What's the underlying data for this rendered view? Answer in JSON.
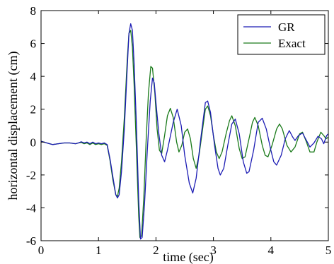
{
  "chart_data": {
    "type": "line",
    "xlabel": "time (sec)",
    "ylabel": "horizontal displacement (cm)",
    "xlim": [
      0,
      5
    ],
    "ylim": [
      -6,
      8
    ],
    "xticks": [
      "0",
      "1",
      "2",
      "3",
      "4",
      "5"
    ],
    "yticks": [
      "-6",
      "-4",
      "-2",
      "0",
      "2",
      "4",
      "6",
      "8"
    ],
    "grid": false,
    "legend_position": "top-right",
    "series": [
      {
        "name": "GR",
        "color": "#1c1cb4",
        "points": [
          [
            0,
            0.05
          ],
          [
            0.1,
            -0.05
          ],
          [
            0.2,
            -0.15
          ],
          [
            0.3,
            -0.1
          ],
          [
            0.4,
            -0.05
          ],
          [
            0.5,
            -0.05
          ],
          [
            0.6,
            -0.1
          ],
          [
            0.65,
            -0.05
          ],
          [
            0.7,
            0.02
          ],
          [
            0.75,
            -0.05
          ],
          [
            0.8,
            0.0
          ],
          [
            0.85,
            -0.1
          ],
          [
            0.9,
            0.0
          ],
          [
            0.95,
            -0.1
          ],
          [
            1.0,
            -0.05
          ],
          [
            1.05,
            -0.1
          ],
          [
            1.1,
            -0.05
          ],
          [
            1.15,
            -0.15
          ],
          [
            1.2,
            -1.0
          ],
          [
            1.25,
            -2.1
          ],
          [
            1.3,
            -3.2
          ],
          [
            1.33,
            -3.4
          ],
          [
            1.36,
            -3.2
          ],
          [
            1.4,
            -1.8
          ],
          [
            1.45,
            0.8
          ],
          [
            1.5,
            4.5
          ],
          [
            1.53,
            6.6
          ],
          [
            1.56,
            7.2
          ],
          [
            1.59,
            6.8
          ],
          [
            1.62,
            4.8
          ],
          [
            1.66,
            1.0
          ],
          [
            1.7,
            -3.5
          ],
          [
            1.73,
            -5.9
          ],
          [
            1.76,
            -5.8
          ],
          [
            1.8,
            -3.8
          ],
          [
            1.85,
            -0.5
          ],
          [
            1.9,
            2.5
          ],
          [
            1.94,
            3.9
          ],
          [
            1.97,
            3.6
          ],
          [
            2.0,
            2.4
          ],
          [
            2.05,
            0.5
          ],
          [
            2.1,
            -0.8
          ],
          [
            2.15,
            -1.2
          ],
          [
            2.2,
            -0.5
          ],
          [
            2.3,
            1.2
          ],
          [
            2.37,
            2.0
          ],
          [
            2.44,
            1.0
          ],
          [
            2.5,
            -0.8
          ],
          [
            2.58,
            -2.5
          ],
          [
            2.64,
            -3.1
          ],
          [
            2.7,
            -2.2
          ],
          [
            2.78,
            0.2
          ],
          [
            2.86,
            2.4
          ],
          [
            2.9,
            2.5
          ],
          [
            2.95,
            1.8
          ],
          [
            3.02,
            -0.2
          ],
          [
            3.08,
            -1.6
          ],
          [
            3.12,
            -2.0
          ],
          [
            3.18,
            -1.6
          ],
          [
            3.25,
            -0.2
          ],
          [
            3.32,
            1.1
          ],
          [
            3.38,
            1.4
          ],
          [
            3.45,
            0.5
          ],
          [
            3.52,
            -1.2
          ],
          [
            3.58,
            -1.9
          ],
          [
            3.62,
            -1.8
          ],
          [
            3.7,
            -0.5
          ],
          [
            3.78,
            1.2
          ],
          [
            3.85,
            1.45
          ],
          [
            3.92,
            0.8
          ],
          [
            4.0,
            -0.5
          ],
          [
            4.05,
            -1.2
          ],
          [
            4.1,
            -1.4
          ],
          [
            4.18,
            -0.8
          ],
          [
            4.25,
            0.2
          ],
          [
            4.32,
            0.7
          ],
          [
            4.38,
            0.3
          ],
          [
            4.42,
            0.1
          ],
          [
            4.48,
            0.4
          ],
          [
            4.55,
            0.55
          ],
          [
            4.62,
            0.1
          ],
          [
            4.68,
            -0.3
          ],
          [
            4.75,
            -0.05
          ],
          [
            4.82,
            0.35
          ],
          [
            4.88,
            0.2
          ],
          [
            4.92,
            -0.1
          ],
          [
            4.97,
            0.4
          ],
          [
            5.0,
            0.5
          ]
        ]
      },
      {
        "name": "Exact",
        "color": "#1a7a1a",
        "points": [
          [
            0,
            0.05
          ],
          [
            0.1,
            -0.05
          ],
          [
            0.2,
            -0.15
          ],
          [
            0.3,
            -0.1
          ],
          [
            0.4,
            -0.05
          ],
          [
            0.5,
            -0.05
          ],
          [
            0.6,
            -0.1
          ],
          [
            0.65,
            -0.05
          ],
          [
            0.7,
            -0.02
          ],
          [
            0.75,
            -0.1
          ],
          [
            0.8,
            -0.05
          ],
          [
            0.85,
            -0.15
          ],
          [
            0.9,
            -0.05
          ],
          [
            0.95,
            -0.15
          ],
          [
            1.0,
            -0.1
          ],
          [
            1.05,
            -0.15
          ],
          [
            1.1,
            -0.1
          ],
          [
            1.15,
            -0.2
          ],
          [
            1.2,
            -1.1
          ],
          [
            1.25,
            -2.3
          ],
          [
            1.3,
            -3.2
          ],
          [
            1.33,
            -3.3
          ],
          [
            1.36,
            -2.8
          ],
          [
            1.4,
            -1.2
          ],
          [
            1.45,
            1.5
          ],
          [
            1.5,
            5.0
          ],
          [
            1.53,
            6.6
          ],
          [
            1.56,
            6.8
          ],
          [
            1.59,
            5.8
          ],
          [
            1.62,
            3.5
          ],
          [
            1.66,
            -0.5
          ],
          [
            1.7,
            -4.5
          ],
          [
            1.72,
            -5.8
          ],
          [
            1.75,
            -5.7
          ],
          [
            1.79,
            -3.3
          ],
          [
            1.83,
            0.2
          ],
          [
            1.87,
            3.0
          ],
          [
            1.91,
            4.6
          ],
          [
            1.94,
            4.5
          ],
          [
            1.98,
            3.0
          ],
          [
            2.02,
            0.8
          ],
          [
            2.06,
            -0.5
          ],
          [
            2.1,
            -0.7
          ],
          [
            2.15,
            0.4
          ],
          [
            2.2,
            1.6
          ],
          [
            2.25,
            2.05
          ],
          [
            2.3,
            1.5
          ],
          [
            2.36,
            0.0
          ],
          [
            2.4,
            -0.6
          ],
          [
            2.45,
            -0.2
          ],
          [
            2.5,
            0.6
          ],
          [
            2.55,
            0.8
          ],
          [
            2.6,
            0.2
          ],
          [
            2.65,
            -1.0
          ],
          [
            2.7,
            -1.6
          ],
          [
            2.75,
            -0.8
          ],
          [
            2.82,
            1.0
          ],
          [
            2.86,
            2.0
          ],
          [
            2.9,
            2.2
          ],
          [
            2.95,
            1.6
          ],
          [
            3.0,
            0.4
          ],
          [
            3.05,
            -0.6
          ],
          [
            3.1,
            -1.0
          ],
          [
            3.15,
            -0.6
          ],
          [
            3.22,
            0.5
          ],
          [
            3.28,
            1.3
          ],
          [
            3.32,
            1.6
          ],
          [
            3.38,
            1.0
          ],
          [
            3.45,
            -0.4
          ],
          [
            3.5,
            -1.0
          ],
          [
            3.55,
            -0.9
          ],
          [
            3.62,
            0.2
          ],
          [
            3.68,
            1.2
          ],
          [
            3.72,
            1.5
          ],
          [
            3.78,
            1.0
          ],
          [
            3.85,
            -0.2
          ],
          [
            3.9,
            -0.8
          ],
          [
            3.95,
            -0.9
          ],
          [
            4.02,
            -0.2
          ],
          [
            4.1,
            0.8
          ],
          [
            4.15,
            1.1
          ],
          [
            4.2,
            0.8
          ],
          [
            4.28,
            -0.2
          ],
          [
            4.35,
            -0.6
          ],
          [
            4.42,
            -0.3
          ],
          [
            4.5,
            0.5
          ],
          [
            4.55,
            0.6
          ],
          [
            4.62,
            0.0
          ],
          [
            4.68,
            -0.6
          ],
          [
            4.75,
            -0.6
          ],
          [
            4.8,
            0.0
          ],
          [
            4.87,
            0.6
          ],
          [
            4.92,
            0.4
          ],
          [
            4.96,
            0.2
          ],
          [
            5.0,
            0.3
          ]
        ]
      }
    ]
  }
}
